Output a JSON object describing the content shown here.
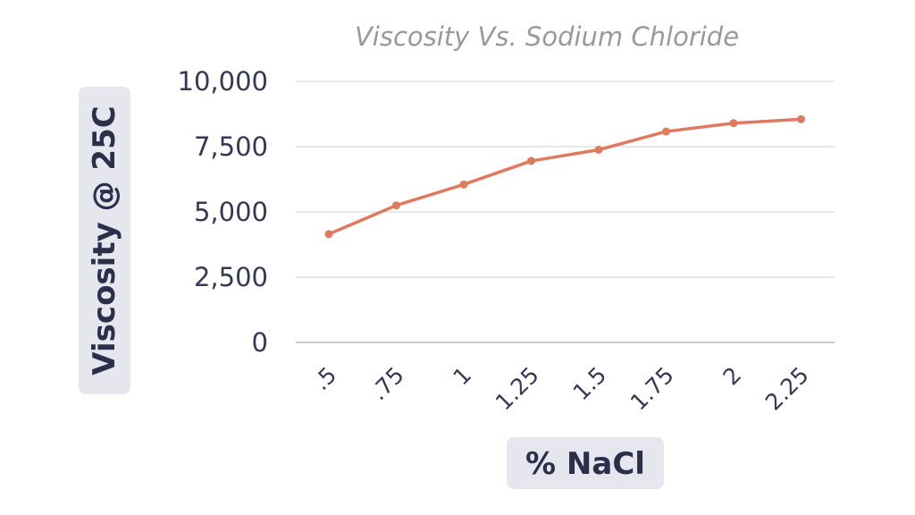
{
  "chart_data": {
    "type": "line",
    "title": "Viscosity Vs. Sodium Chloride",
    "xlabel": "% NaCl",
    "ylabel": "Viscosity @ 25C",
    "categories": [
      ".5",
      ".75",
      "1",
      "1.25",
      "1.5",
      "1.75",
      "2",
      "2.25"
    ],
    "series": [
      {
        "values": [
          4150,
          5250,
          6050,
          6950,
          7380,
          8080,
          8400,
          8550
        ]
      }
    ],
    "yticks": [
      "0",
      "2,500",
      "5,000",
      "7,500",
      "10,000"
    ],
    "ylim": [
      0,
      10000
    ],
    "grid": true,
    "legend": "none",
    "colors": {
      "line": "#e07a5f",
      "text": "#343a55",
      "title": "#9a9a9a",
      "grid": "#dcdcdc",
      "badge": "#e6e6ef"
    }
  }
}
